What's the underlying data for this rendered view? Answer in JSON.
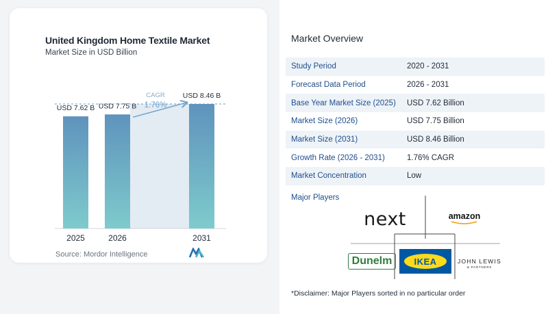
{
  "chart_data": {
    "type": "bar",
    "title": "United Kingdom Home Textile Market",
    "subtitle": "Market Size in USD Billion",
    "categories": [
      "2025",
      "2026",
      "2031"
    ],
    "values": [
      7.62,
      7.75,
      8.46
    ],
    "value_labels": [
      "USD 7.62 B",
      "USD 7.75 B",
      "USD 8.46 B"
    ],
    "ylim": [
      0,
      8.46
    ],
    "cagr_label": "CAGR",
    "cagr_value": "1.76%",
    "colors": {
      "bar_top": "#5f93bd",
      "bar_bottom": "#7ecbcc",
      "shade": "#e3ebf3",
      "cagr": "#6fa0c8",
      "dashed": "#6b9ec9"
    }
  },
  "source": "Source:  Mordor Intelligence",
  "overview": {
    "title": "Market Overview",
    "rows": [
      {
        "label": "Study Period",
        "value": "2020 - 2031"
      },
      {
        "label": "Forecast Data Period",
        "value": "2026 - 2031"
      },
      {
        "label": "Base Year Market Size (2025)",
        "value": "USD 7.62 Billion"
      },
      {
        "label": "Market Size (2026)",
        "value": "USD 7.75 Billion"
      },
      {
        "label": "Market Size (2031)",
        "value": "USD 8.46 Billion"
      },
      {
        "label": "Growth Rate (2026 - 2031)",
        "value": "1.76% CAGR"
      },
      {
        "label": "Market Concentration",
        "value": "Low"
      }
    ]
  },
  "players": {
    "title": "Major Players",
    "logos": {
      "next": "next",
      "amazon": "amazon",
      "dunelm": "Dunelm",
      "ikea": "IKEA",
      "john_lewis": "JOHN LEWIS",
      "john_lewis_sub": "& PARTNERS"
    }
  },
  "disclaimer": "*Disclaimer: Major Players sorted in no particular order"
}
